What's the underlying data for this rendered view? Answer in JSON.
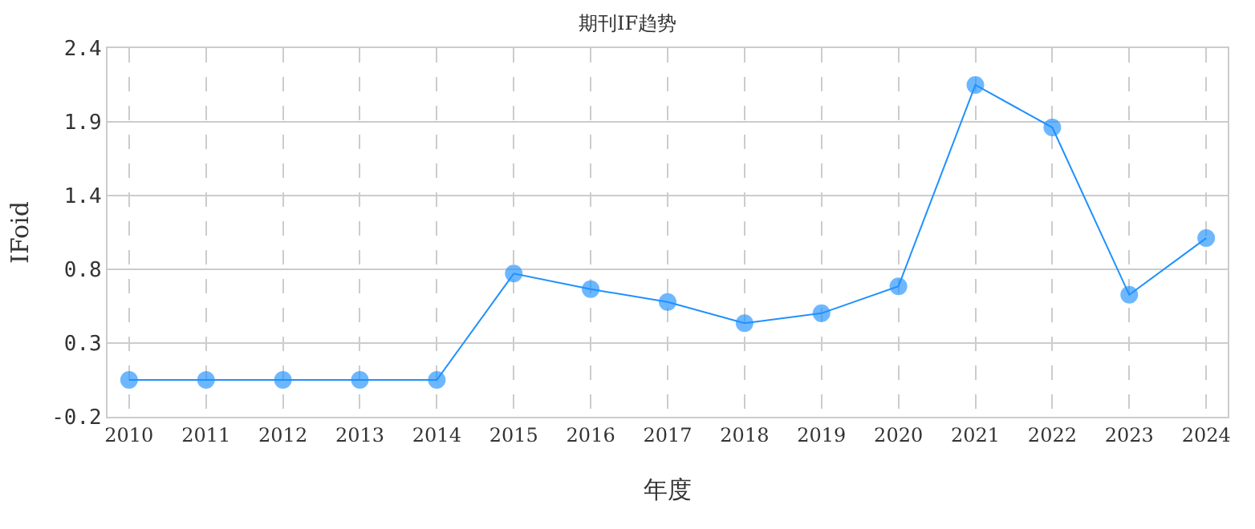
{
  "chart_data": {
    "type": "line",
    "title": "期刊IF趋势",
    "xlabel": "年度",
    "ylabel": "IFoid",
    "categories": [
      "2010",
      "2011",
      "2012",
      "2013",
      "2014",
      "2015",
      "2016",
      "2017",
      "2018",
      "2019",
      "2020",
      "2021",
      "2022",
      "2023",
      "2024"
    ],
    "series": [
      {
        "color": "#1e90ff",
        "values": [
          0.06,
          0.06,
          0.06,
          0.06,
          0.06,
          0.81,
          0.7,
          0.61,
          0.46,
          0.53,
          0.72,
          2.14,
          1.84,
          0.66,
          1.06
        ]
      }
    ],
    "ylim": [
      -0.2,
      2.4
    ],
    "yticks": [
      -0.2,
      {
        "value": 0.32,
        "label": "0.3"
      },
      {
        "value": 0.84,
        "label": "0.8"
      },
      {
        "value": 1.36,
        "label": "1.4"
      },
      {
        "value": 1.88,
        "label": "1.9"
      },
      2.4
    ],
    "grid": true,
    "marker": "circle",
    "line_style": "solid"
  }
}
